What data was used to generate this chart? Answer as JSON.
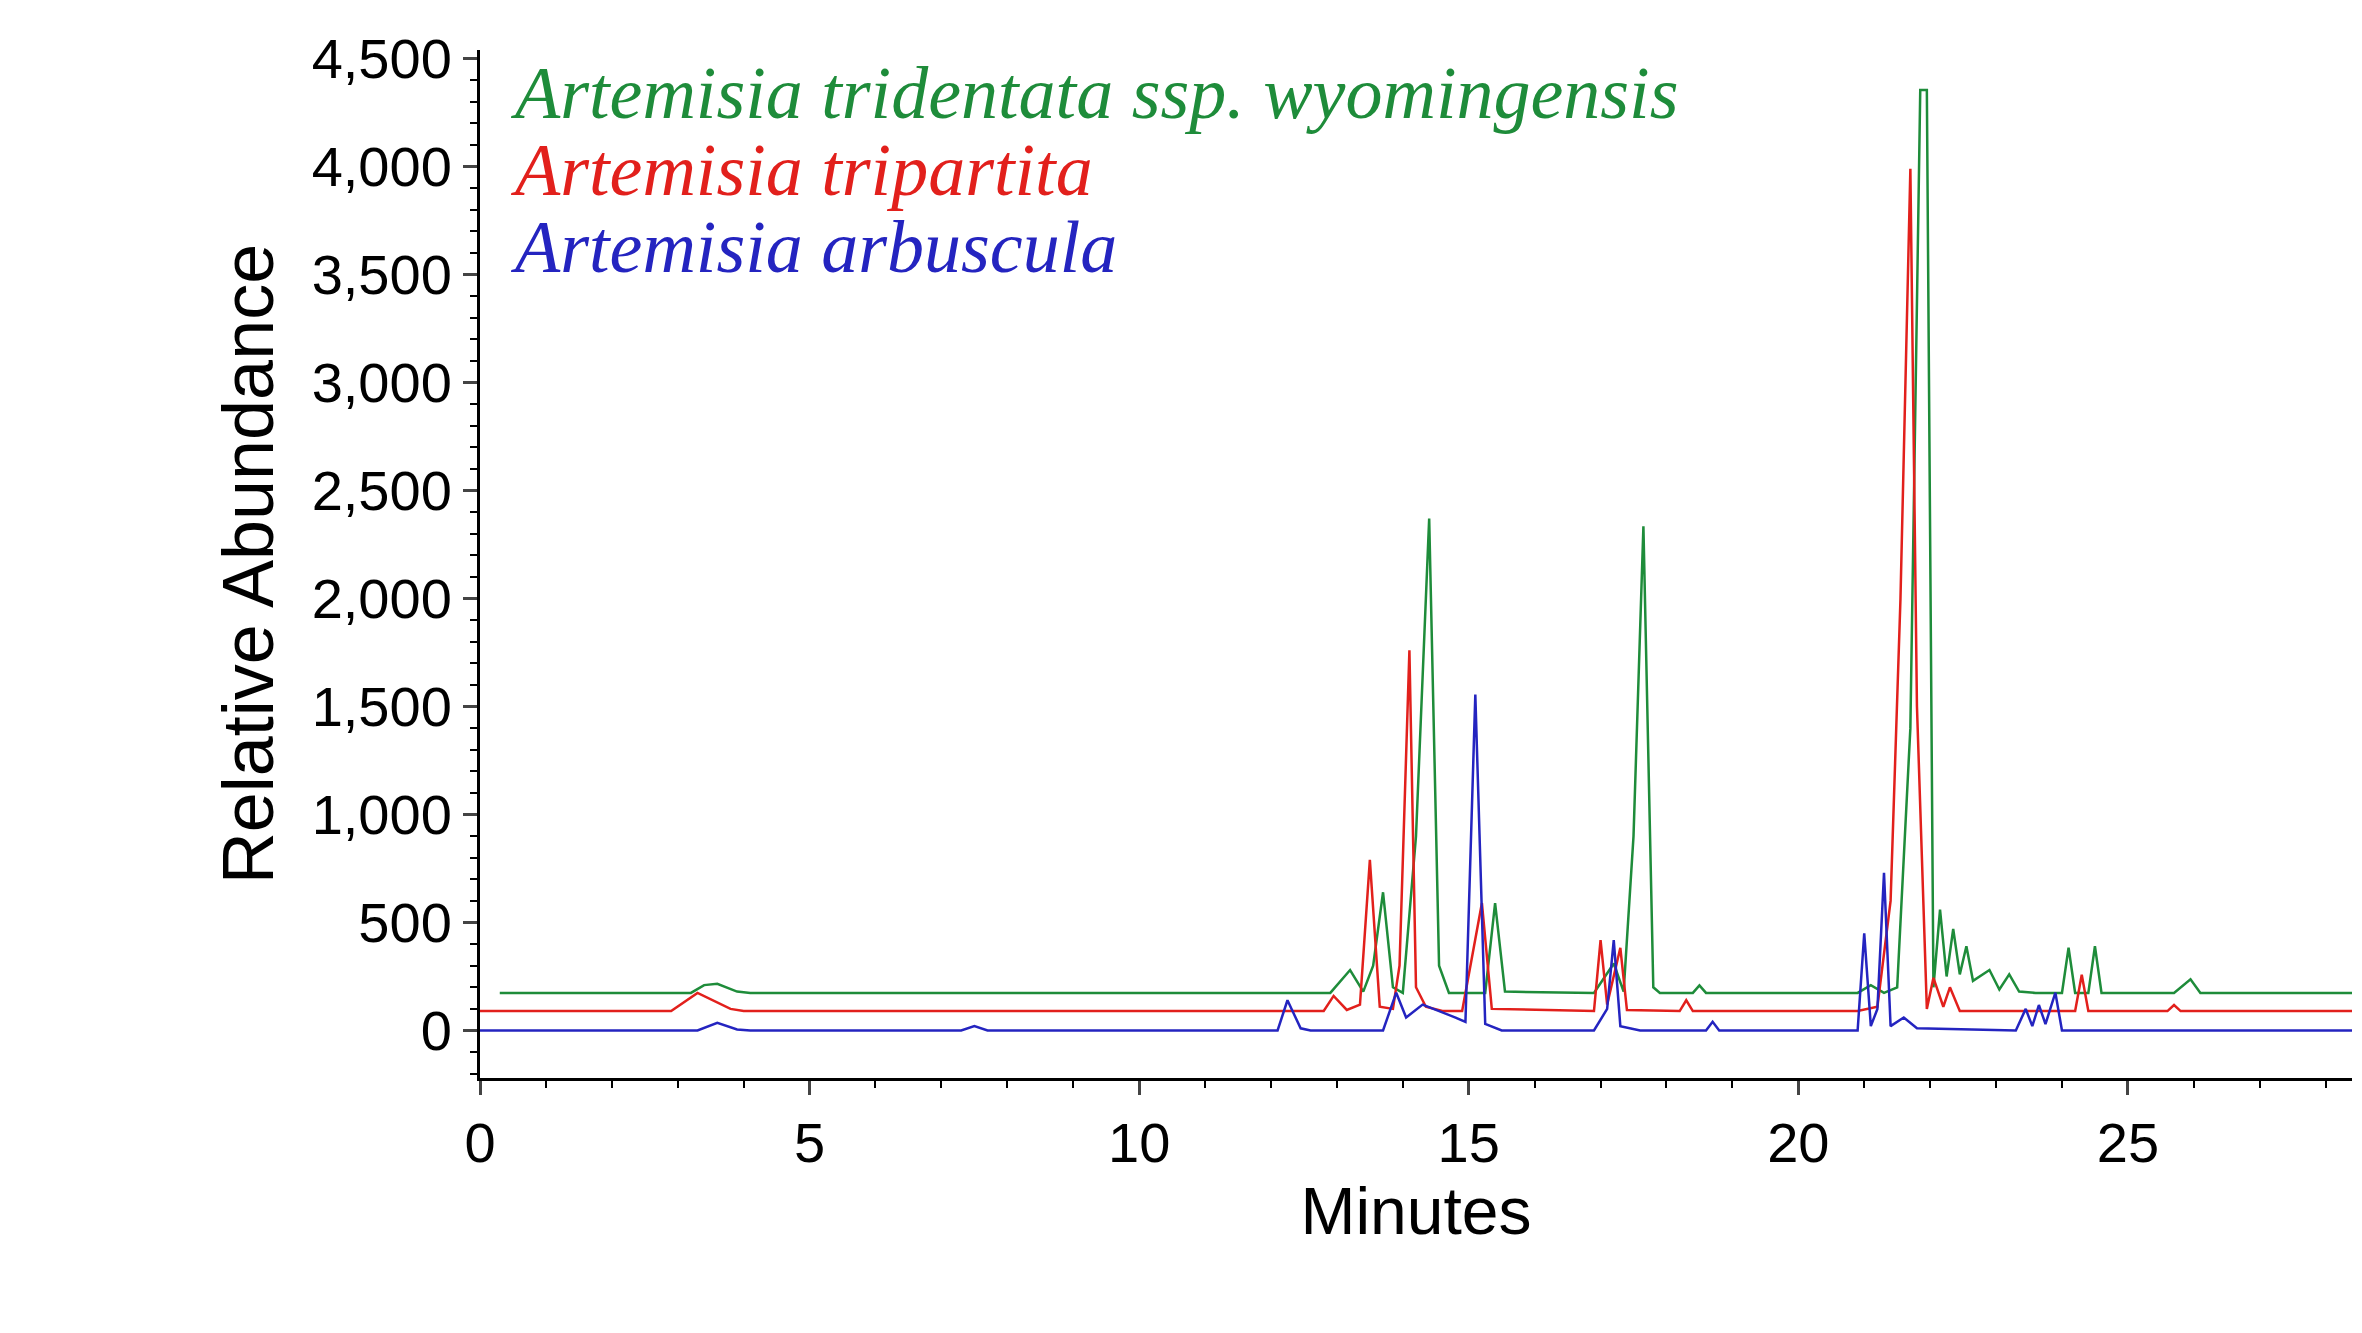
{
  "chart_data": {
    "type": "line",
    "xlabel": "Minutes",
    "ylabel": "Relative Abundance",
    "legend": "top left",
    "marker": "none",
    "line_style": "solid",
    "xlim": [
      0,
      28.4
    ],
    "xticks": [
      0,
      5,
      10,
      15,
      20,
      25
    ],
    "ylim": [
      -220,
      4540
    ],
    "yticks": [
      0,
      500,
      {
        "value": 1000,
        "label": "1,000"
      },
      {
        "value": 1500,
        "label": "1,500"
      },
      {
        "value": 2000,
        "label": "2,000"
      },
      {
        "value": 2500,
        "label": "2,500"
      },
      {
        "value": 3000,
        "label": "3,000"
      },
      {
        "value": 3500,
        "label": "3,500"
      },
      {
        "value": 4000,
        "label": "4,000"
      },
      {
        "value": 4500,
        "label": "4,500"
      }
    ],
    "series": [
      {
        "name": "Artemisia tridentata ssp. wyomingensis",
        "color": "#1e8c3a",
        "x": [
          0.3,
          3.2,
          3.4,
          3.6,
          3.9,
          4.1,
          12.9,
          13.2,
          13.4,
          13.55,
          13.7,
          13.85,
          14.0,
          14.2,
          14.4,
          14.55,
          14.7,
          15.25,
          15.4,
          15.55,
          16.9,
          17.2,
          17.35,
          17.5,
          17.65,
          17.8,
          17.9,
          18.4,
          18.5,
          18.6,
          20.9,
          21.1,
          21.3,
          21.5,
          21.7,
          21.85,
          21.95,
          22.05,
          22.15,
          22.25,
          22.35,
          22.45,
          22.55,
          22.65,
          22.9,
          23.05,
          23.2,
          23.35,
          23.6,
          24.0,
          24.1,
          24.2,
          24.4,
          24.5,
          24.6,
          25.7,
          25.95,
          26.1,
          28.4
        ],
        "values": [
          174,
          174,
          210,
          216,
          180,
          174,
          174,
          280,
          180,
          300,
          640,
          200,
          174,
          900,
          2370,
          300,
          174,
          174,
          590,
          180,
          174,
          310,
          180,
          900,
          2335,
          200,
          174,
          174,
          209,
          174,
          174,
          210,
          174,
          200,
          1400,
          4355,
          4355,
          200,
          560,
          250,
          470,
          260,
          390,
          230,
          280,
          190,
          260,
          180,
          174,
          174,
          383,
          174,
          174,
          390,
          174,
          174,
          237,
          174,
          174
        ]
      },
      {
        "name": "Artemisia tripartita",
        "color": "#e2201c",
        "x": [
          0,
          2.9,
          3.3,
          3.8,
          4.0,
          12.8,
          12.95,
          13.15,
          13.35,
          13.5,
          13.65,
          13.85,
          13.95,
          14.1,
          14.2,
          14.35,
          14.6,
          14.9,
          15.2,
          15.35,
          16.9,
          17.0,
          17.1,
          17.3,
          17.4,
          18.2,
          18.3,
          18.4,
          20.9,
          21.2,
          21.4,
          21.55,
          21.7,
          21.8,
          21.95,
          22.05,
          22.2,
          22.3,
          22.45,
          24.2,
          24.3,
          24.4,
          25.6,
          25.7,
          25.8,
          28.4
        ],
        "values": [
          90,
          90,
          174,
          100,
          90,
          90,
          160,
          95,
          120,
          790,
          110,
          100,
          300,
          1760,
          200,
          110,
          90,
          90,
          590,
          100,
          90,
          418,
          120,
          383,
          95,
          90,
          140,
          90,
          90,
          110,
          600,
          2000,
          3990,
          1500,
          100,
          244,
          110,
          200,
          90,
          90,
          258,
          90,
          90,
          118,
          90,
          90
        ]
      },
      {
        "name": "Artemisia arbuscula",
        "color": "#2424c0",
        "x": [
          0,
          3.3,
          3.6,
          3.9,
          4.1,
          7.3,
          7.5,
          7.7,
          12.1,
          12.25,
          12.45,
          12.6,
          13.7,
          13.9,
          14.05,
          14.3,
          14.8,
          14.95,
          15.1,
          15.25,
          15.5,
          16.9,
          17.1,
          17.2,
          17.3,
          17.6,
          18.6,
          18.7,
          18.8,
          20.9,
          21.0,
          21.1,
          21.2,
          21.3,
          21.4,
          21.6,
          21.8,
          23.3,
          23.45,
          23.55,
          23.65,
          23.75,
          23.9,
          24.0,
          28.4
        ],
        "values": [
          0,
          0,
          35,
          5,
          0,
          0,
          20,
          0,
          0,
          140,
          10,
          0,
          0,
          175,
          60,
          120,
          60,
          40,
          1555,
          30,
          0,
          0,
          100,
          418,
          20,
          0,
          0,
          40,
          0,
          0,
          450,
          20,
          100,
          730,
          20,
          60,
          10,
          0,
          100,
          20,
          118,
          30,
          175,
          0,
          0
        ]
      }
    ]
  }
}
